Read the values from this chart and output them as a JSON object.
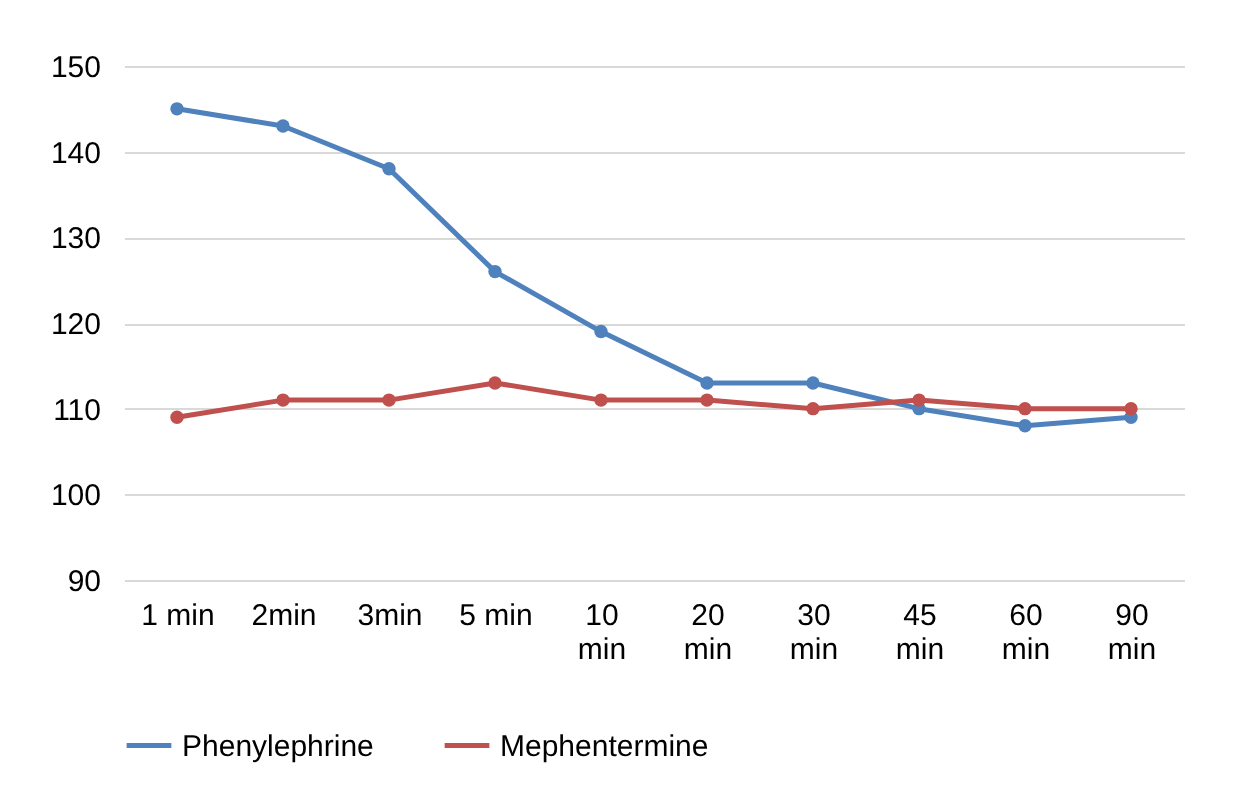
{
  "chart_data": {
    "type": "line",
    "categories": [
      "1 min",
      "2min",
      "3min",
      "5 min",
      "10 min",
      "20 min",
      "30 min",
      "45 min",
      "60 min",
      "90 min"
    ],
    "series": [
      {
        "name": "Phenylephrine",
        "color": "#4f81bd",
        "values": [
          145,
          143,
          138,
          126,
          119,
          113,
          113,
          110,
          108,
          109
        ]
      },
      {
        "name": "Mephentermine",
        "color": "#c0504d",
        "values": [
          109,
          111,
          111,
          113,
          111,
          111,
          110,
          111,
          110,
          110
        ]
      }
    ],
    "ylim": [
      90,
      150
    ],
    "yticks": [
      90,
      100,
      110,
      120,
      130,
      140,
      150
    ],
    "grid": "y",
    "legend": "bottom",
    "marker": "circle",
    "line_style": "solid"
  }
}
